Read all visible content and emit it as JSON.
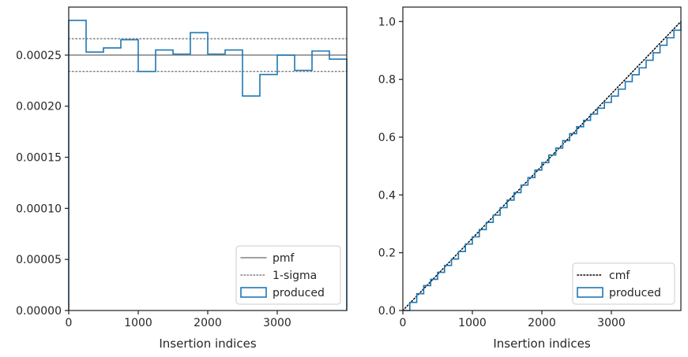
{
  "chart_data": [
    {
      "type": "line",
      "xlabel": "Insertion indices",
      "ylabel": "",
      "xlim": [
        0,
        4000
      ],
      "ylim": [
        0,
        0.000297
      ],
      "xticks": [
        0,
        1000,
        2000,
        3000
      ],
      "xtick_labels": [
        "0",
        "1000",
        "2000",
        "3000"
      ],
      "yticks": [
        0,
        5e-05,
        0.0001,
        0.00015,
        0.0002,
        0.00025
      ],
      "ytick_labels": [
        "0.00000",
        "0.00005",
        "0.00010",
        "0.00015",
        "0.00020",
        "0.00025"
      ],
      "legend_position": "lower right",
      "grid": false,
      "series": [
        {
          "name": "pmf",
          "kind": "hline",
          "y": 0.00025,
          "color": "#808080",
          "style": "solid"
        },
        {
          "name": "1-sigma",
          "kind": "hlines",
          "y": [
            0.000266,
            0.000234
          ],
          "color": "#808080",
          "style": "dotted"
        },
        {
          "name": "produced",
          "kind": "step-histogram",
          "color": "#1f77b4",
          "bin_edges": [
            0,
            250,
            500,
            750,
            1000,
            1250,
            1500,
            1750,
            2000,
            2250,
            2500,
            2750,
            3000,
            3250,
            3500,
            3750,
            4000
          ],
          "values": [
            0.000284,
            0.000253,
            0.000257,
            0.000265,
            0.000234,
            0.000255,
            0.000251,
            0.000272,
            0.000251,
            0.000255,
            0.00021,
            0.000231,
            0.00025,
            0.000235,
            0.000254,
            0.000246
          ]
        }
      ]
    },
    {
      "type": "line",
      "xlabel": "Insertion indices",
      "ylabel": "",
      "xlim": [
        0,
        4000
      ],
      "ylim": [
        0,
        1.05
      ],
      "xticks": [
        0,
        1000,
        2000,
        3000
      ],
      "xtick_labels": [
        "0",
        "1000",
        "2000",
        "3000"
      ],
      "yticks": [
        0,
        0.2,
        0.4,
        0.6,
        0.8,
        1.0
      ],
      "ytick_labels": [
        "0.0",
        "0.2",
        "0.4",
        "0.6",
        "0.8",
        "1.0"
      ],
      "legend_position": "lower right",
      "grid": false,
      "series": [
        {
          "name": "cmf",
          "kind": "line",
          "color": "#000000",
          "style": "dotted",
          "x": [
            0,
            4000
          ],
          "y": [
            0,
            1.0
          ]
        },
        {
          "name": "produced",
          "kind": "step-line",
          "color": "#1f77b4",
          "x": [
            0,
            100,
            200,
            300,
            400,
            500,
            600,
            700,
            800,
            900,
            1000,
            1100,
            1200,
            1300,
            1400,
            1500,
            1600,
            1700,
            1800,
            1900,
            2000,
            2100,
            2200,
            2300,
            2400,
            2500,
            2600,
            2700,
            2800,
            2900,
            3000,
            3100,
            3200,
            3300,
            3400,
            3500,
            3600,
            3700,
            3800,
            3900,
            4000
          ],
          "y": [
            0,
            0.028,
            0.058,
            0.086,
            0.108,
            0.132,
            0.156,
            0.178,
            0.204,
            0.23,
            0.255,
            0.28,
            0.305,
            0.33,
            0.356,
            0.382,
            0.408,
            0.434,
            0.46,
            0.486,
            0.512,
            0.538,
            0.562,
            0.588,
            0.612,
            0.636,
            0.658,
            0.68,
            0.7,
            0.72,
            0.742,
            0.766,
            0.792,
            0.816,
            0.84,
            0.866,
            0.892,
            0.918,
            0.944,
            0.97,
            1.0
          ]
        }
      ]
    }
  ]
}
